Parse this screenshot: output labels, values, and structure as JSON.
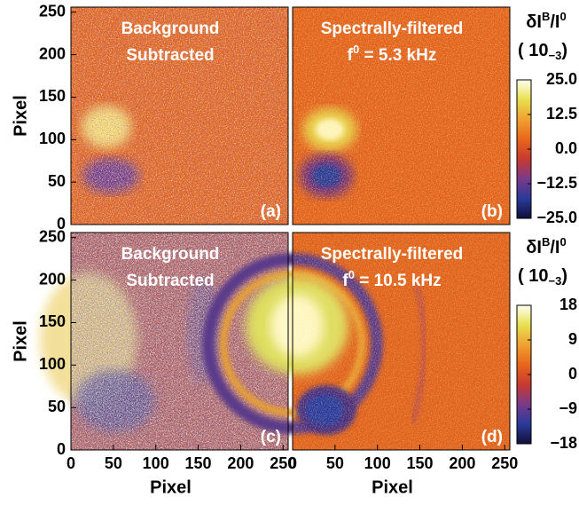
{
  "chart_data": [
    {
      "type": "heatmap",
      "title": [
        "Background",
        "Subtracted"
      ],
      "panel_label": "(a)",
      "ylabel": "Pixel",
      "xlim": [
        0,
        256
      ],
      "ylim": [
        0,
        256
      ],
      "yticks": [
        0,
        50,
        100,
        150,
        200,
        250
      ]
    },
    {
      "type": "heatmap",
      "title": [
        "Spectrally-filtered",
        [
          "f",
          "0",
          " = 5.3 kHz"
        ]
      ],
      "panel_label": "(b)",
      "xlim": [
        0,
        256
      ],
      "ylim": [
        0,
        256
      ],
      "colorbar": {
        "label": [
          "δI",
          "B",
          "/I",
          "0"
        ],
        "unit": [
          "( 10",
          "−3",
          ")"
        ],
        "zlim": [
          -25,
          25
        ],
        "ticks": [
          {
            "value": 25,
            "label": "25.0"
          },
          {
            "value": 12.5,
            "label": "12.5"
          },
          {
            "value": 0,
            "label": "0.0"
          },
          {
            "value": -12.5,
            "label": "−12.5"
          },
          {
            "value": -25,
            "label": "−25.0"
          }
        ],
        "colormap": [
          "#10103a",
          "#2a3a9a",
          "#7a3a8a",
          "#c83a30",
          "#e8661c",
          "#f0a030",
          "#e8e050",
          "#fffff0"
        ]
      }
    },
    {
      "type": "heatmap",
      "title": [
        "Background",
        "Subtracted"
      ],
      "panel_label": "(c)",
      "ylabel": "Pixel",
      "xlabel": "Pixel",
      "xlim": [
        0,
        256
      ],
      "ylim": [
        0,
        256
      ],
      "xticks": [
        0,
        50,
        100,
        150,
        200,
        250
      ],
      "yticks": [
        0,
        50,
        100,
        150,
        200,
        250
      ]
    },
    {
      "type": "heatmap",
      "title": [
        "Spectrally-filtered",
        [
          "f",
          "0",
          " = 10.5 kHz"
        ]
      ],
      "panel_label": "(d)",
      "xlabel": "Pixel",
      "xlim": [
        0,
        256
      ],
      "ylim": [
        0,
        256
      ],
      "xticks": [
        0,
        50,
        100,
        150,
        200,
        250
      ],
      "colorbar": {
        "label": [
          "δI",
          "B",
          "/I",
          "0"
        ],
        "unit": [
          "( 10",
          "−3",
          ")"
        ],
        "zlim": [
          -18,
          18
        ],
        "ticks": [
          18,
          9,
          0,
          {
            "value": -9,
            "label": "−9"
          },
          {
            "value": -18,
            "label": "−18"
          }
        ],
        "colormap": [
          "#10103a",
          "#2a3a9a",
          "#7a3a8a",
          "#c83a30",
          "#e8661c",
          "#f0a030",
          "#e8e050",
          "#fffff0"
        ]
      }
    }
  ]
}
